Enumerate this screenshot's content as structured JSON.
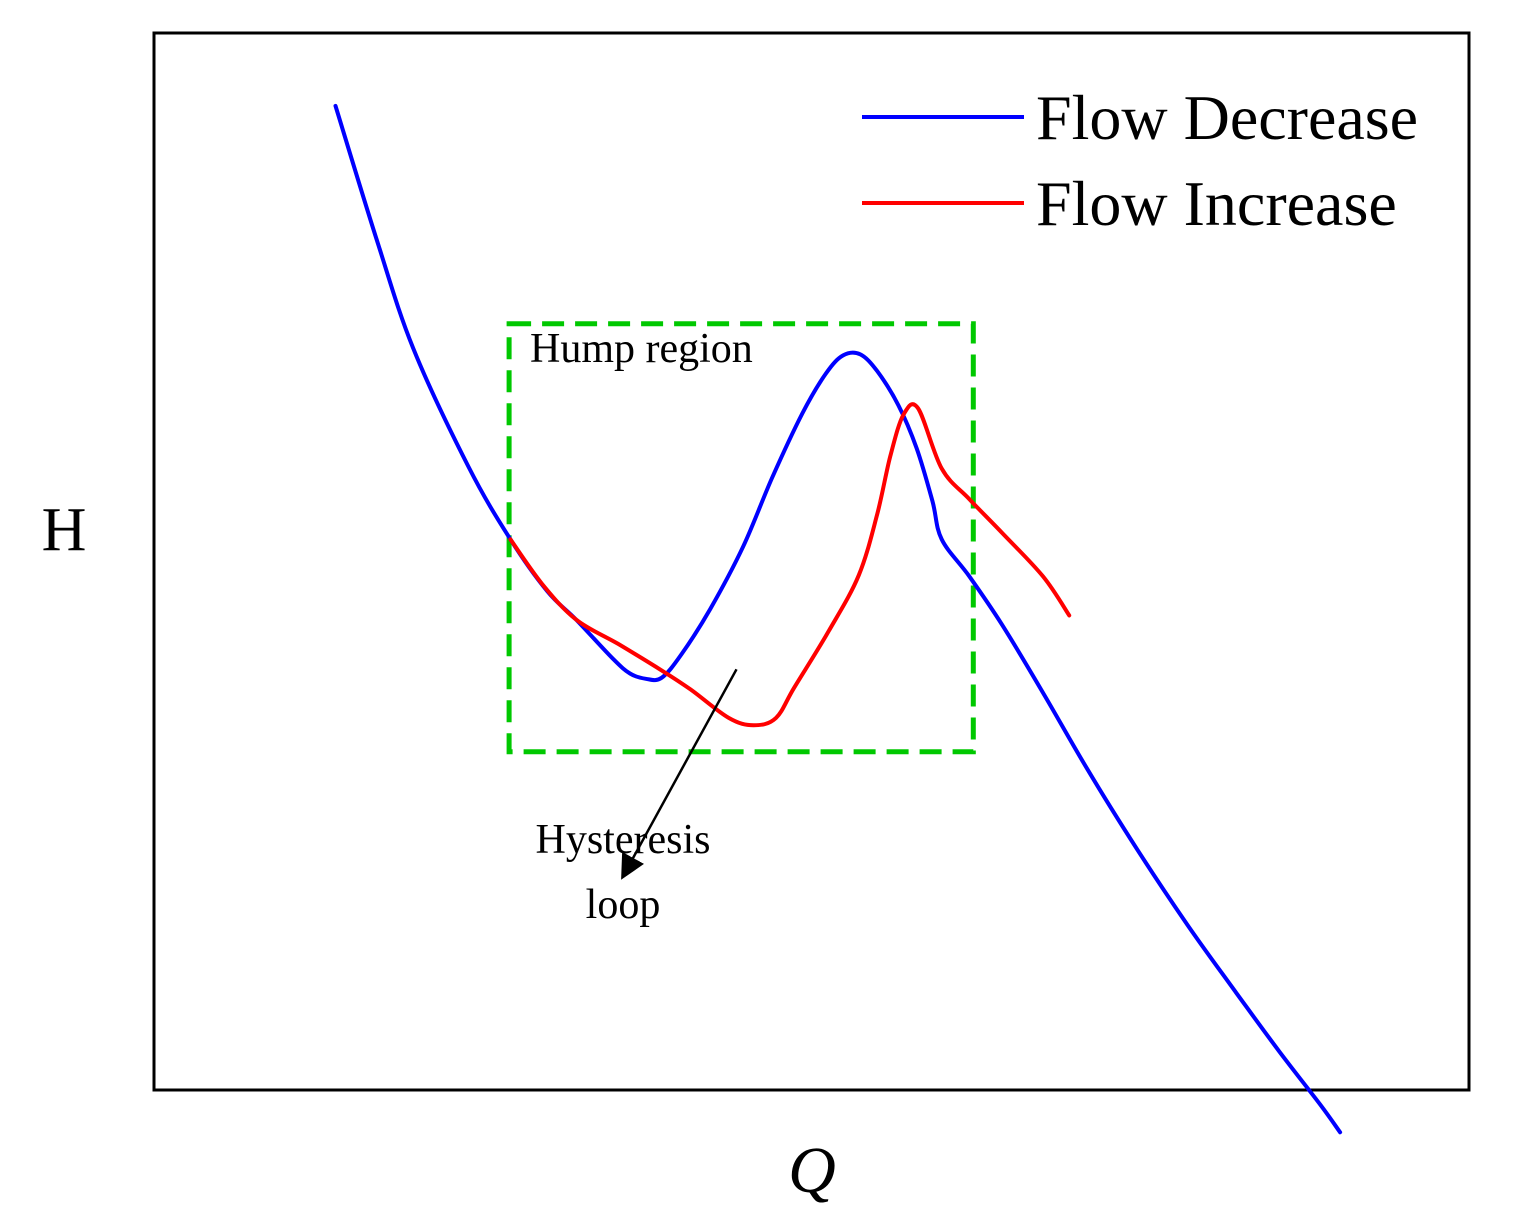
{
  "chart_data": {
    "type": "line",
    "title": "",
    "xlabel": "Q",
    "ylabel": "H",
    "xlim": [
      0,
      100
    ],
    "ylim": [
      0,
      100
    ],
    "grid": false,
    "legend_position": "top-right",
    "series": [
      {
        "name": "Flow Decrease",
        "color": "#0000ff",
        "x": [
          13.8,
          16.9,
          19.7,
          23.9,
          27.1,
          29.9,
          32.1,
          34.9,
          36.2,
          37.4,
          38.6,
          40.1,
          42.3,
          44.8,
          47.0,
          49.3,
          51.1,
          52.4,
          53.7,
          55.0,
          56.6,
          58.0,
          59.2,
          59.9,
          62.0,
          64.5,
          67.6,
          71.0,
          74.8,
          78.6,
          82.3,
          85.6,
          88.7,
          90.2
        ],
        "y": [
          93.1,
          80.6,
          70.2,
          59.0,
          52.1,
          47.2,
          44.5,
          40.8,
          39.4,
          38.9,
          39.0,
          41.2,
          45.5,
          51.4,
          57.9,
          64.0,
          67.8,
          69.5,
          69.6,
          68.0,
          64.8,
          60.7,
          55.7,
          52.1,
          48.6,
          44.0,
          37.6,
          30.3,
          22.7,
          15.6,
          9.2,
          3.6,
          -1.4,
          -4.0
        ]
      },
      {
        "name": "Flow Increase",
        "color": "#ff0000",
        "x": [
          27.1,
          29.5,
          32.1,
          35.3,
          38.6,
          40.8,
          43.7,
          45.6,
          47.3,
          48.7,
          51.3,
          53.6,
          55.0,
          56.0,
          57.0,
          58.1,
          59.9,
          62.0,
          64.5,
          67.6,
          69.6
        ],
        "y": [
          52.1,
          47.9,
          44.5,
          42.2,
          39.7,
          37.9,
          35.2,
          34.5,
          35.2,
          38.1,
          43.4,
          48.7,
          54.5,
          60.0,
          63.9,
          64.5,
          58.8,
          55.9,
          52.7,
          48.6,
          44.9
        ]
      }
    ],
    "legend": [
      "Flow Decrease",
      "Flow Increase"
    ],
    "annotations": [
      {
        "kind": "dashed-box",
        "label": "Hump region",
        "color": "#00c800",
        "x_range": [
          27.0,
          62.3
        ],
        "y_range": [
          32.0,
          72.5
        ]
      },
      {
        "kind": "arrow",
        "label_lines": [
          "Hysteresis",
          "loop"
        ],
        "from": [
          44.3,
          39.8
        ],
        "to": [
          35.7,
          20.3
        ]
      }
    ]
  }
}
